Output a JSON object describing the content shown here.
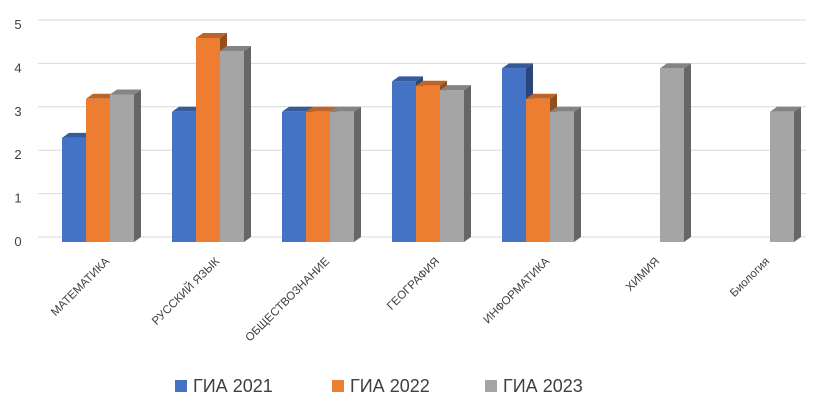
{
  "chart_data": {
    "type": "bar",
    "title": "",
    "xlabel": "",
    "ylabel": "",
    "categories": [
      "МАТЕМАТИКА",
      "РУССКИЙ ЯЗЫК",
      "ОБЩЕСТВОЗНАНИЕ",
      "ГЕОГРАФИЯ",
      "ИНФОРМАТИКА",
      "ХИМИЯ",
      "Биология"
    ],
    "series": [
      {
        "name": "ГИА 2021",
        "color": "#4472c4",
        "values": [
          2.4,
          3.0,
          3.0,
          3.7,
          4.0,
          null,
          null
        ]
      },
      {
        "name": "ГИА 2022",
        "color": "#ed7d31",
        "values": [
          3.3,
          4.7,
          3.0,
          3.6,
          3.3,
          null,
          null
        ]
      },
      {
        "name": "ГИА 2023",
        "color": "#a5a5a5",
        "values": [
          3.4,
          4.4,
          3.0,
          3.5,
          3.0,
          4.0,
          3.0
        ]
      }
    ],
    "y_ticks": [
      "0",
      "1",
      "2",
      "3",
      "4",
      "5"
    ],
    "ylim": [
      0,
      5
    ],
    "grid": true,
    "three_d": true,
    "legend_position": "bottom"
  }
}
